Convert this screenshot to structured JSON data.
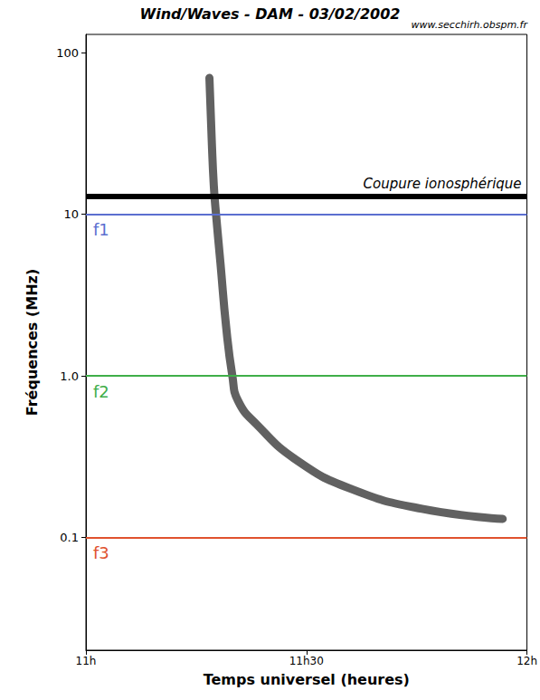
{
  "chart_data": {
    "type": "line",
    "title": "Wind/Waves - DAM - 03/02/2002",
    "subtitle": "www.secchirh.obspm.fr",
    "x_label": "Temps universel (heures)",
    "y_label": "Fréquences (MHz)",
    "log": "y",
    "grid": false,
    "xlim": [
      11,
      12
    ],
    "xticks": [
      {
        "value": 11,
        "label": "11h"
      },
      {
        "value": 11.5,
        "label": "11h30"
      },
      {
        "value": 12,
        "label": "12h"
      }
    ],
    "ylim": [
      0.02,
      130
    ],
    "yticks": [
      0.1,
      {
        "value": 1,
        "label": "1.0"
      },
      10,
      100
    ],
    "color": "#3a3a3a",
    "x": [
      11.28,
      11.285,
      11.29,
      11.295,
      11.305,
      11.318,
      11.332,
      11.345,
      11.387,
      11.478,
      11.6,
      11.762,
      11.945
    ],
    "values": [
      70,
      30,
      15,
      10,
      5,
      2,
      1,
      0.7,
      0.5,
      0.3,
      0.2,
      0.15,
      0.13
    ],
    "reference_lines": [
      {
        "value": 13,
        "label": "Coupure ionosphérique",
        "color": "#000000"
      },
      {
        "value": 10,
        "label": "f1",
        "color": "#5b6fd0"
      },
      {
        "value": 1,
        "label": "f2",
        "color": "#3fae49"
      },
      {
        "value": 0.1,
        "label": "f3",
        "color": "#e0522e"
      }
    ]
  }
}
